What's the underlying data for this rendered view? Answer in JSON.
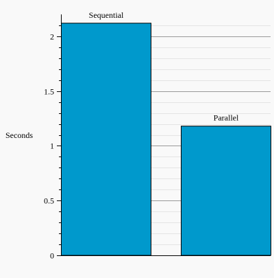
{
  "chart_data": {
    "type": "bar",
    "title": "",
    "xlabel": "",
    "ylabel": "Seconds",
    "categories": [
      "Sequential",
      "Parallel"
    ],
    "values": [
      2.12,
      1.18
    ],
    "ylim": [
      0,
      2.2
    ],
    "yticks": [
      "0",
      "0.5",
      "1",
      "1.5",
      "2"
    ],
    "ytick_values": [
      0,
      0.5,
      1,
      1.5,
      2
    ],
    "grid": true,
    "legend": "none",
    "bar_color": "#0099cc",
    "background_color": "#f9f9f9",
    "grid_major_color": "#999999",
    "grid_minor_color": "#e4e4e4"
  }
}
